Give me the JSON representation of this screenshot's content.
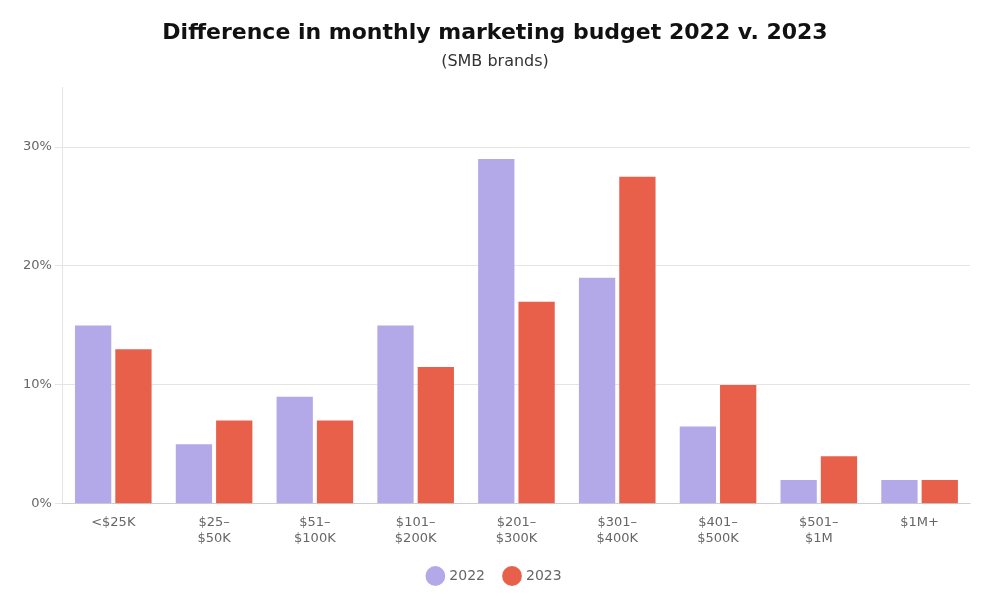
{
  "chart_data": {
    "type": "bar",
    "title": "Difference in monthly marketing budget 2022 v. 2023",
    "subtitle": "(SMB brands)",
    "categories": [
      "<$25K",
      "$25–\n$50K",
      "$51–\n$100K",
      "$101–\n$200K",
      "$201–\n$300K",
      "$301–\n$400K",
      "$401–\n$500K",
      "$501–\n$1M",
      "$1M+"
    ],
    "series": [
      {
        "name": "2022",
        "color": "#b3a8e8",
        "values": [
          15,
          5,
          9,
          15,
          29,
          19,
          6.5,
          2,
          2
        ]
      },
      {
        "name": "2023",
        "color": "#e8604a",
        "values": [
          13,
          7,
          7,
          11.5,
          17,
          27.5,
          10,
          4,
          2
        ]
      }
    ],
    "ylim": [
      0,
      35
    ],
    "yticks": [
      {
        "value": 0,
        "label": "0%"
      },
      {
        "value": 10,
        "label": "10%"
      },
      {
        "value": 20,
        "label": "20%"
      },
      {
        "value": 30,
        "label": "30%"
      }
    ],
    "grid": true,
    "legend": "bottom"
  }
}
